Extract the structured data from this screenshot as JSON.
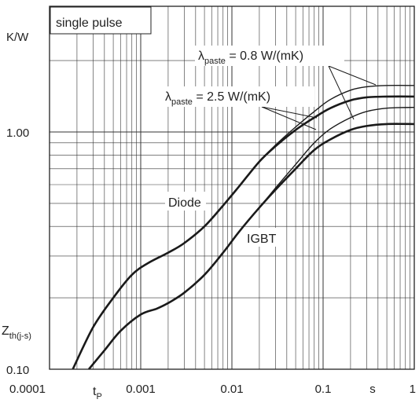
{
  "chart_data": {
    "type": "line",
    "xscale": "log",
    "yscale": "log",
    "xlim": [
      0.0001,
      1
    ],
    "ylim": [
      0.1,
      2.0
    ],
    "grid": true,
    "xlabel": "s",
    "ylabel": "K/W",
    "y_symbol": {
      "main": "Z",
      "sub": "th(j-s)"
    },
    "x_marker": {
      "main": "t",
      "sub": "P"
    },
    "x_tick_labels": [
      "0.0001",
      "0.001",
      "0.01",
      "0.1",
      "1"
    ],
    "y_tick_labels": [
      "0.10",
      "1.00"
    ],
    "legend_box": "single pulse",
    "annotations": {
      "diode": "Diode",
      "igbt": "IGBT",
      "paste_08": {
        "lam": "λ",
        "sub": "paste",
        "rest": " = 0.8 W/(mK)"
      },
      "paste_25": {
        "lam": "λ",
        "sub": "paste",
        "rest": " = 2.5 W/(mK)"
      }
    },
    "series": [
      {
        "name": "Diode",
        "paste": "0.8 W/(mK)",
        "x": [
          0.00018,
          0.0003,
          0.0005,
          0.0008,
          0.0012,
          0.002,
          0.003,
          0.005,
          0.008,
          0.012,
          0.02,
          0.03,
          0.05,
          0.08,
          0.12,
          0.2,
          0.3,
          0.5,
          1
        ],
        "y": [
          0.1,
          0.15,
          0.2,
          0.25,
          0.28,
          0.31,
          0.34,
          0.4,
          0.49,
          0.59,
          0.75,
          0.88,
          1.05,
          1.22,
          1.37,
          1.5,
          1.55,
          1.57,
          1.57
        ]
      },
      {
        "name": "Diode",
        "paste": "2.5 W/(mK)",
        "x": [
          0.00018,
          0.0003,
          0.0005,
          0.0008,
          0.0012,
          0.002,
          0.003,
          0.005,
          0.008,
          0.012,
          0.02,
          0.03,
          0.05,
          0.08,
          0.12,
          0.2,
          0.3,
          0.5,
          1
        ],
        "y": [
          0.1,
          0.15,
          0.2,
          0.25,
          0.28,
          0.31,
          0.34,
          0.4,
          0.49,
          0.59,
          0.75,
          0.87,
          1.02,
          1.15,
          1.26,
          1.36,
          1.4,
          1.41,
          1.41
        ]
      },
      {
        "name": "IGBT",
        "paste": "0.8 W/(mK)",
        "x": [
          0.00027,
          0.0004,
          0.0006,
          0.001,
          0.0015,
          0.002,
          0.003,
          0.005,
          0.008,
          0.012,
          0.02,
          0.03,
          0.05,
          0.08,
          0.12,
          0.2,
          0.3,
          0.5,
          1
        ],
        "y": [
          0.1,
          0.12,
          0.145,
          0.17,
          0.18,
          0.19,
          0.21,
          0.25,
          0.31,
          0.38,
          0.48,
          0.58,
          0.73,
          0.9,
          1.03,
          1.15,
          1.22,
          1.26,
          1.27
        ]
      },
      {
        "name": "IGBT",
        "paste": "2.5 W/(mK)",
        "x": [
          0.00027,
          0.0004,
          0.0006,
          0.001,
          0.0015,
          0.002,
          0.003,
          0.005,
          0.008,
          0.012,
          0.02,
          0.03,
          0.05,
          0.08,
          0.12,
          0.2,
          0.3,
          0.5,
          1
        ],
        "y": [
          0.1,
          0.12,
          0.145,
          0.17,
          0.18,
          0.19,
          0.21,
          0.25,
          0.31,
          0.38,
          0.48,
          0.57,
          0.7,
          0.84,
          0.93,
          1.02,
          1.06,
          1.08,
          1.08
        ]
      }
    ]
  }
}
